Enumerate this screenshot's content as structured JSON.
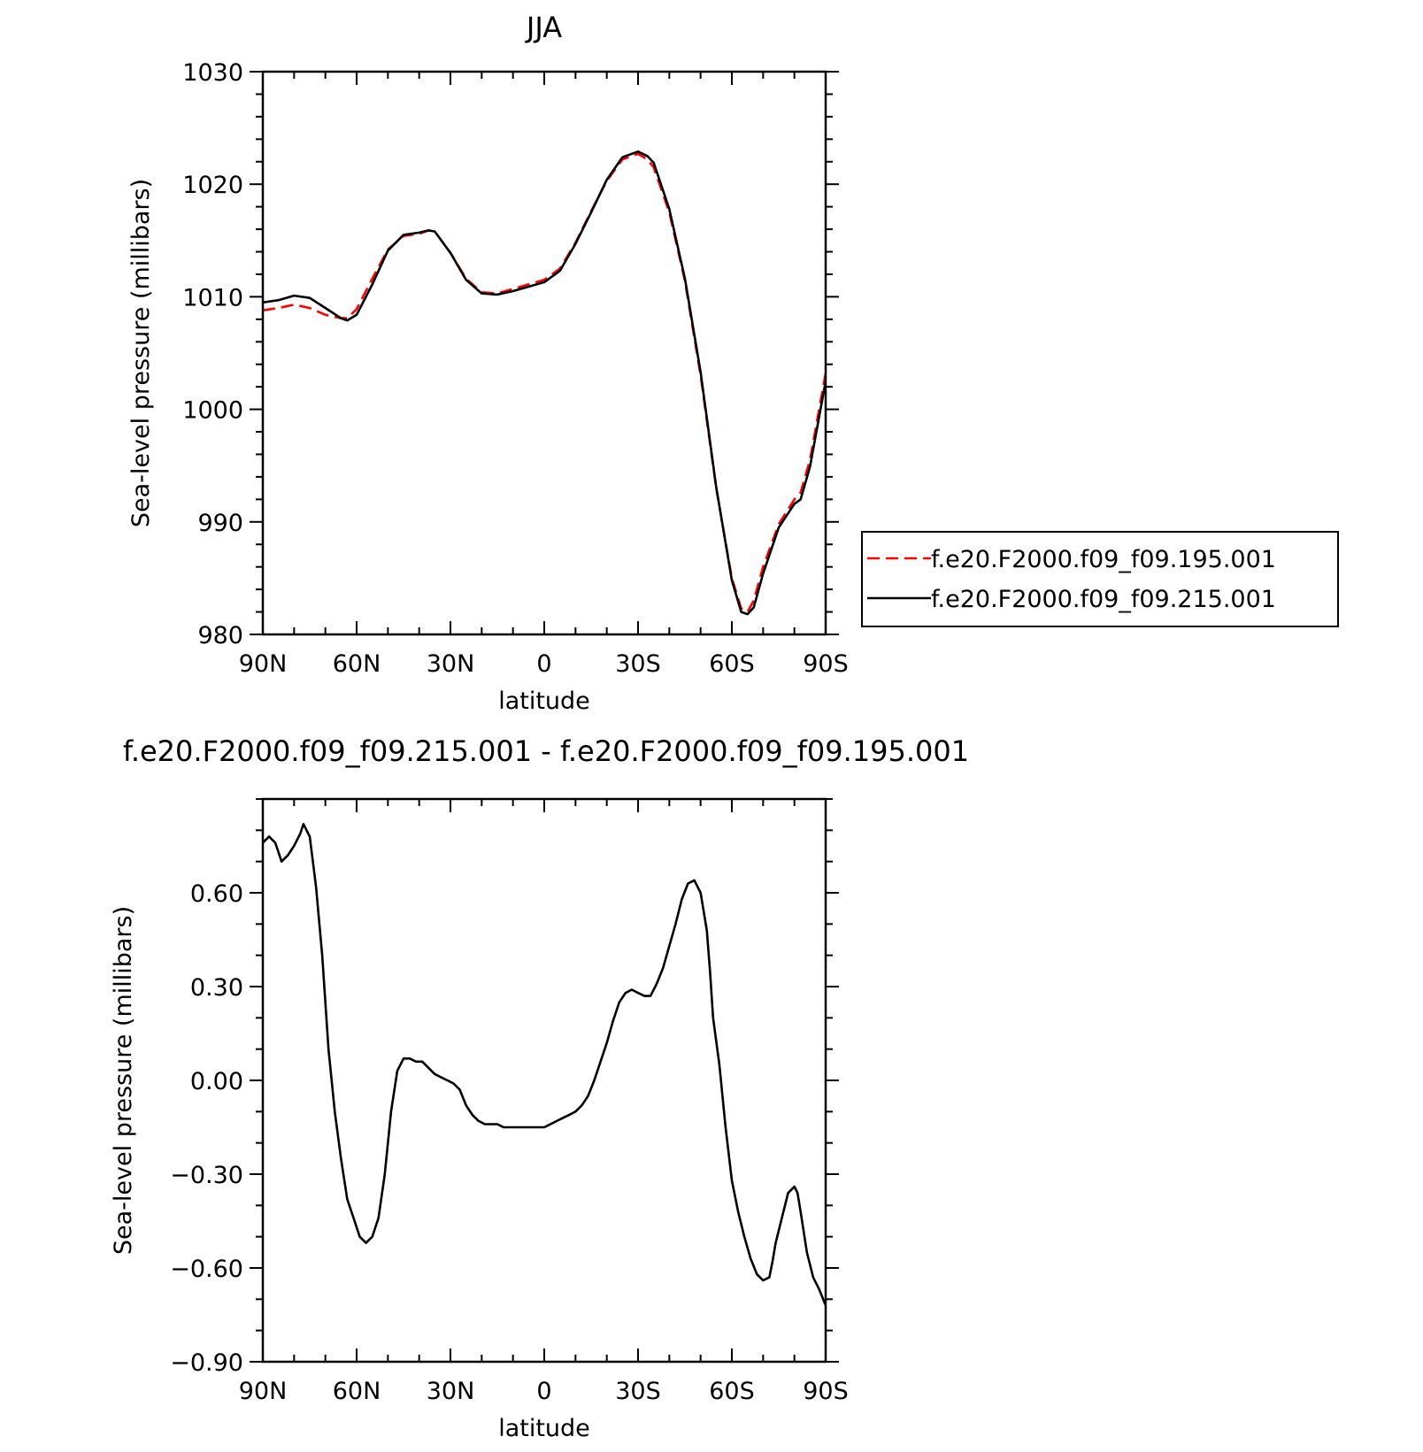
{
  "chart_data": [
    {
      "type": "line",
      "title": "JJA",
      "xlabel": "latitude",
      "ylabel": "Sea-level pressure (millibars)",
      "xlim": [
        90,
        -90
      ],
      "ylim": [
        980,
        1030
      ],
      "xticks": [
        {
          "value": 90,
          "label": "90N"
        },
        {
          "value": 60,
          "label": "60N"
        },
        {
          "value": 30,
          "label": "30N"
        },
        {
          "value": 0,
          "label": "0"
        },
        {
          "value": -30,
          "label": "30S"
        },
        {
          "value": -60,
          "label": "60S"
        },
        {
          "value": -90,
          "label": "90S"
        }
      ],
      "yticks": [
        {
          "value": 980,
          "label": "980"
        },
        {
          "value": 990,
          "label": "990"
        },
        {
          "value": 1000,
          "label": "1000"
        },
        {
          "value": 1010,
          "label": "1010"
        },
        {
          "value": 1020,
          "label": "1020"
        },
        {
          "value": 1030,
          "label": "1030"
        }
      ],
      "legend_position": "right",
      "series": [
        {
          "name": "f.e20.F2000.f09_f09.195.001",
          "color": "#ff0000",
          "dash": "dashed",
          "x": [
            90,
            85,
            80,
            75,
            70,
            65,
            63,
            60,
            55,
            50,
            45,
            40,
            37,
            35,
            30,
            25,
            20,
            15,
            10,
            5,
            0,
            -5,
            -10,
            -15,
            -20,
            -25,
            -30,
            -33,
            -35,
            -40,
            -45,
            -50,
            -55,
            -60,
            -63,
            -65,
            -67,
            -70,
            -75,
            -80,
            -82,
            -85,
            -90
          ],
          "y": [
            1008.8,
            1009.0,
            1009.3,
            1009.0,
            1008.4,
            1008.1,
            1008.1,
            1008.9,
            1011.6,
            1014.2,
            1015.4,
            1015.6,
            1015.9,
            1015.8,
            1013.9,
            1011.6,
            1010.4,
            1010.3,
            1010.7,
            1011.1,
            1011.5,
            1012.5,
            1014.8,
            1017.6,
            1020.3,
            1022.2,
            1022.7,
            1022.2,
            1021.5,
            1017.5,
            1011.4,
            1003.0,
            993.0,
            985.0,
            982.3,
            982.0,
            983.0,
            986.0,
            989.8,
            992.0,
            992.6,
            995.5,
            1003.2
          ]
        },
        {
          "name": "f.e20.F2000.f09_f09.215.001",
          "color": "#000000",
          "dash": "solid",
          "x": [
            90,
            85,
            80,
            75,
            70,
            65,
            63,
            60,
            55,
            50,
            45,
            40,
            37,
            35,
            30,
            25,
            20,
            15,
            10,
            5,
            0,
            -5,
            -10,
            -15,
            -20,
            -25,
            -30,
            -33,
            -35,
            -40,
            -45,
            -50,
            -55,
            -60,
            -63,
            -65,
            -67,
            -70,
            -75,
            -80,
            -82,
            -85,
            -90
          ],
          "y": [
            1009.5,
            1009.7,
            1010.1,
            1009.9,
            1009.0,
            1008.1,
            1007.9,
            1008.4,
            1011.1,
            1014.1,
            1015.5,
            1015.7,
            1015.9,
            1015.8,
            1013.9,
            1011.5,
            1010.3,
            1010.2,
            1010.5,
            1010.9,
            1011.3,
            1012.3,
            1014.7,
            1017.5,
            1020.4,
            1022.4,
            1022.9,
            1022.5,
            1021.9,
            1017.8,
            1011.6,
            1003.3,
            993.1,
            984.8,
            982.0,
            981.8,
            982.4,
            985.4,
            989.5,
            991.6,
            992.0,
            994.9,
            1002.5
          ]
        }
      ]
    },
    {
      "type": "line",
      "title": "f.e20.F2000.f09_f09.215.001 - f.e20.F2000.f09_f09.195.001",
      "xlabel": "latitude",
      "ylabel": "Sea-level pressure (millibars)",
      "xlim": [
        90,
        -90
      ],
      "ylim": [
        -0.9,
        0.9
      ],
      "xticks": [
        {
          "value": 90,
          "label": "90N"
        },
        {
          "value": 60,
          "label": "60N"
        },
        {
          "value": 30,
          "label": "30N"
        },
        {
          "value": 0,
          "label": "0"
        },
        {
          "value": -30,
          "label": "30S"
        },
        {
          "value": -60,
          "label": "60S"
        },
        {
          "value": -90,
          "label": "90S"
        }
      ],
      "yticks": [
        {
          "value": -0.9,
          "label": "−0.90"
        },
        {
          "value": -0.6,
          "label": "−0.60"
        },
        {
          "value": -0.3,
          "label": "−0.30"
        },
        {
          "value": 0.0,
          "label": "0.00"
        },
        {
          "value": 0.3,
          "label": "0.30"
        },
        {
          "value": 0.6,
          "label": "0.60"
        }
      ],
      "series": [
        {
          "color": "#000000",
          "dash": "solid",
          "x": [
            90,
            88,
            86,
            84,
            82,
            80,
            78,
            77,
            75,
            73,
            71,
            69,
            67,
            65,
            63,
            61,
            59,
            57,
            56,
            55,
            53,
            51,
            49,
            47,
            45,
            43,
            41,
            39,
            37,
            35,
            33,
            31,
            29,
            27,
            25,
            23,
            21,
            19,
            17,
            15,
            13,
            11,
            9,
            7,
            5,
            3,
            1,
            0,
            -2,
            -4,
            -6,
            -8,
            -10,
            -12,
            -14,
            -16,
            -18,
            -20,
            -22,
            -24,
            -26,
            -28,
            -30,
            -32,
            -34,
            -36,
            -38,
            -40,
            -42,
            -44,
            -46,
            -48,
            -50,
            -52,
            -53,
            -54,
            -56,
            -58,
            -60,
            -62,
            -64,
            -66,
            -68,
            -70,
            -72,
            -73,
            -74,
            -76,
            -78,
            -80,
            -81,
            -82,
            -84,
            -86,
            -88,
            -90
          ],
          "y": [
            0.76,
            0.78,
            0.76,
            0.7,
            0.72,
            0.75,
            0.79,
            0.82,
            0.78,
            0.62,
            0.4,
            0.1,
            -0.1,
            -0.25,
            -0.38,
            -0.44,
            -0.5,
            -0.52,
            -0.51,
            -0.5,
            -0.44,
            -0.3,
            -0.1,
            0.03,
            0.07,
            0.07,
            0.06,
            0.06,
            0.04,
            0.02,
            0.01,
            0.0,
            -0.01,
            -0.03,
            -0.08,
            -0.11,
            -0.13,
            -0.14,
            -0.14,
            -0.14,
            -0.15,
            -0.15,
            -0.15,
            -0.15,
            -0.15,
            -0.15,
            -0.15,
            -0.15,
            -0.14,
            -0.13,
            -0.12,
            -0.11,
            -0.1,
            -0.08,
            -0.05,
            0.0,
            0.06,
            0.12,
            0.19,
            0.25,
            0.28,
            0.29,
            0.28,
            0.27,
            0.27,
            0.31,
            0.36,
            0.43,
            0.5,
            0.58,
            0.63,
            0.64,
            0.6,
            0.48,
            0.35,
            0.2,
            0.05,
            -0.15,
            -0.32,
            -0.42,
            -0.5,
            -0.57,
            -0.62,
            -0.64,
            -0.63,
            -0.58,
            -0.52,
            -0.44,
            -0.36,
            -0.34,
            -0.36,
            -0.42,
            -0.55,
            -0.63,
            -0.67,
            -0.72
          ]
        }
      ]
    }
  ]
}
